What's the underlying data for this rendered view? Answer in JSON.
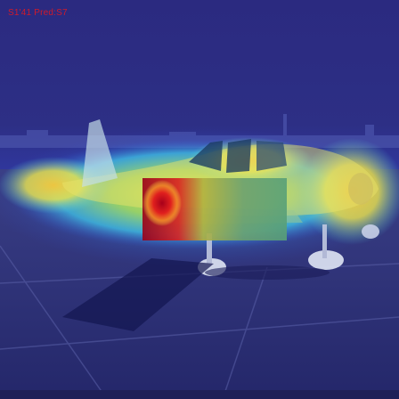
{
  "overlay": {
    "caption": "S1'41 Pred:S7",
    "bottom_left_text": "",
    "bottom_right_text": ""
  },
  "colors": {
    "sky": "#2a2c80",
    "ground": "#2b2e78",
    "heat_red": "#b00018",
    "heat_yellow": "#f3e23a",
    "heat_cyan": "#3fd0e0",
    "caption": "#d01a2a"
  }
}
